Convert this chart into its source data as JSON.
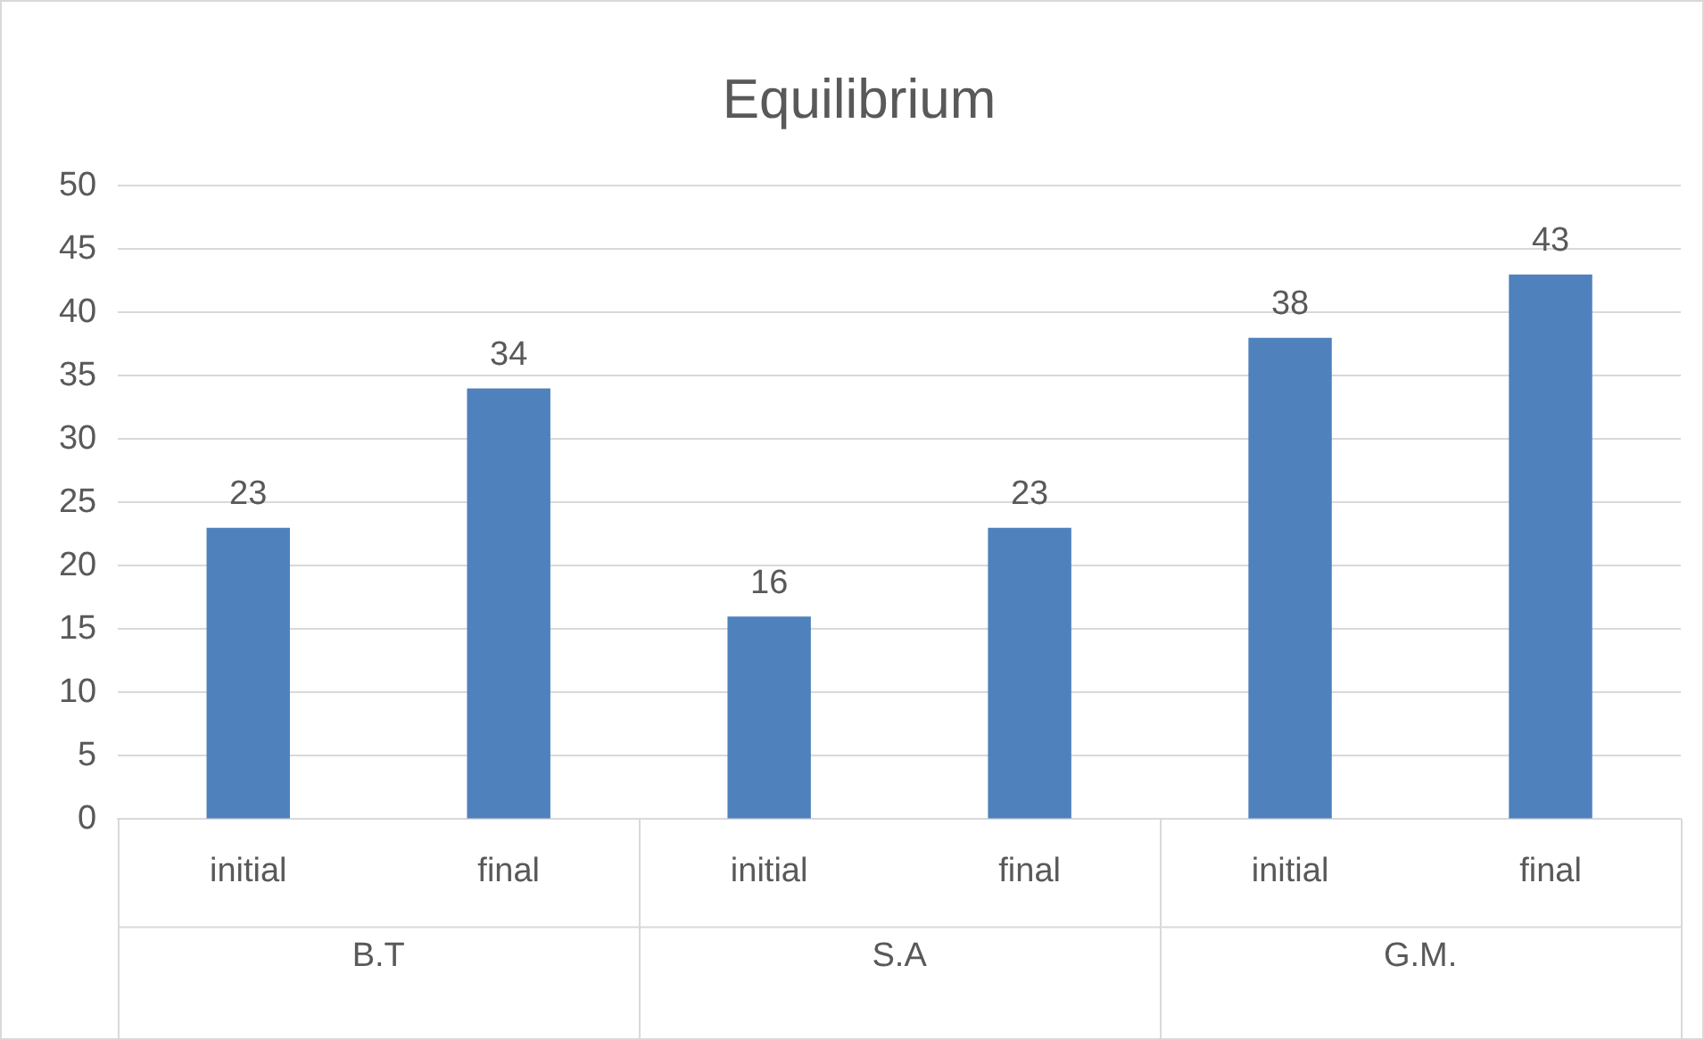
{
  "chart_data": {
    "type": "bar",
    "title": "Equilibrium",
    "categories": [
      "initial",
      "final",
      "initial",
      "final",
      "initial",
      "final"
    ],
    "values": [
      23,
      34,
      16,
      23,
      38,
      43
    ],
    "color": "#4f81bd",
    "ylim": [
      0,
      50
    ],
    "yticks": [
      0,
      5,
      10,
      15,
      20,
      25,
      30,
      35,
      40,
      45,
      50
    ],
    "grid": "y",
    "legend": false,
    "data_labels": true,
    "annotations": [
      "B.T",
      "S.A",
      "G.M."
    ]
  }
}
